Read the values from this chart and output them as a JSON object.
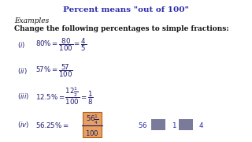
{
  "title": "Percent means \"out of 100\"",
  "title_color": "#2b2baa",
  "bg_color": "#ffffff",
  "text_color": "#1a1a6e",
  "dark_color": "#111111",
  "examples_label": "Examples",
  "instruction": "Change the following percentages to simple fractions:",
  "highlight_box_color": "#e8a060",
  "side_text_color": "#2929a8",
  "gray_box_color": "#7a7a9a",
  "title_fontsize": 7.5,
  "body_fontsize": 6.5,
  "label_fontsize": 6.2
}
